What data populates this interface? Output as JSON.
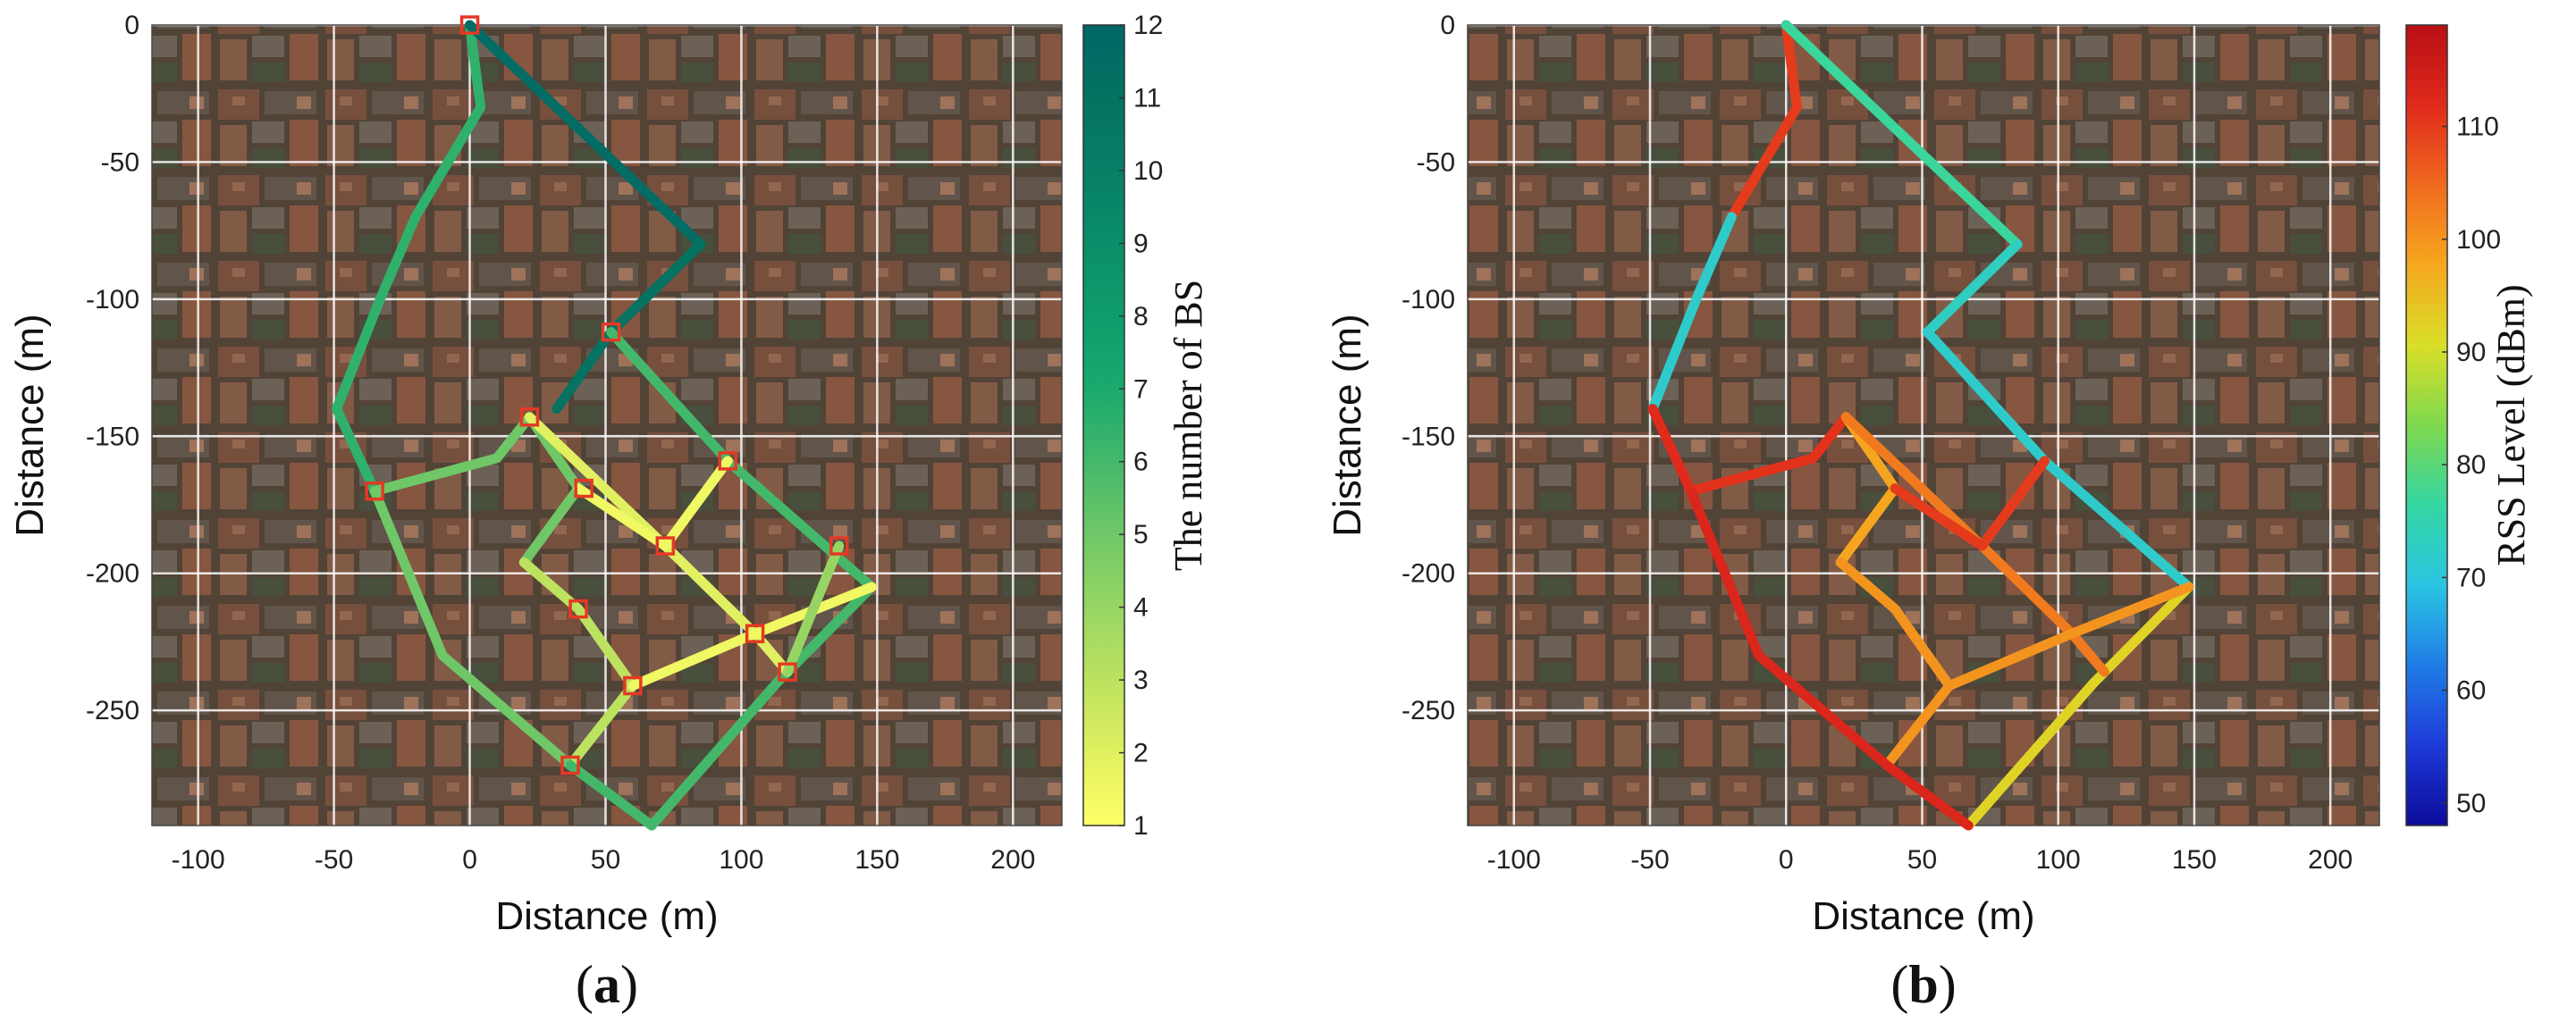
{
  "chart_data": [
    {
      "type": "line",
      "caption": "a",
      "xlabel": "Distance (m)",
      "ylabel": "Distance (m)",
      "xlim": [
        -117,
        218
      ],
      "ylim": [
        -292,
        0
      ],
      "xticks": [
        -100,
        -50,
        0,
        50,
        100,
        150,
        200
      ],
      "yticks": [
        0,
        -50,
        -100,
        -150,
        -200,
        -250
      ],
      "grid": true,
      "background": "aerial-photo",
      "colorbar": {
        "label": "The number of BS",
        "ticks": [
          1,
          2,
          3,
          4,
          5,
          6,
          7,
          8,
          9,
          10,
          11,
          12
        ],
        "range": [
          1,
          12
        ],
        "colormap": "summer-reversed",
        "stops": [
          "#FFFF66",
          "#E0F060",
          "#BCE25F",
          "#96D563",
          "#6FC767",
          "#44B86A",
          "#1AAA6E",
          "#0E9C6C",
          "#0A8E69",
          "#077F66",
          "#057262",
          "#006666"
        ]
      },
      "segments": [
        {
          "x": [
            0,
            4,
            -20,
            -33,
            -49,
            -35
          ],
          "y": [
            0,
            -30,
            -70,
            -100,
            -140,
            -170
          ],
          "value": 6.5
        },
        {
          "x": [
            0,
            85
          ],
          "y": [
            0,
            -80
          ],
          "value": 11.5
        },
        {
          "x": [
            85,
            52,
            32
          ],
          "y": [
            -80,
            -112,
            -140
          ],
          "value": 11
        },
        {
          "x": [
            52,
            95,
            148,
            113,
            67,
            37
          ],
          "y": [
            -112,
            -159,
            -205,
            -240,
            -292,
            -270
          ],
          "value": 6
        },
        {
          "x": [
            -35,
            10,
            22,
            40,
            20
          ],
          "y": [
            -170,
            -158,
            -143,
            -169,
            -196
          ],
          "value": 5
        },
        {
          "x": [
            22,
            72,
            105,
            117
          ],
          "y": [
            -143,
            -190,
            -222,
            -236
          ],
          "value": 2
        },
        {
          "x": [
            20,
            40,
            60,
            37
          ],
          "y": [
            -196,
            -213,
            -241,
            -270
          ],
          "value": 3
        },
        {
          "x": [
            40,
            72,
            95
          ],
          "y": [
            -169,
            -190,
            -159
          ],
          "value": 1.5
        },
        {
          "x": [
            60,
            105,
            148
          ],
          "y": [
            -241,
            -222,
            -205
          ],
          "value": 1.5
        },
        {
          "x": [
            136,
            117
          ],
          "y": [
            -190,
            -236
          ],
          "value": 4
        },
        {
          "x": [
            -35,
            -10,
            37
          ],
          "y": [
            -170,
            -230,
            -270
          ],
          "value": 5
        },
        {
          "x": [
            37,
            67
          ],
          "y": [
            -270,
            -292
          ],
          "value": 6
        }
      ],
      "markers": {
        "x": [
          0,
          52,
          22,
          -35,
          42,
          95,
          72,
          136,
          40,
          105,
          117,
          60,
          37
        ],
        "y": [
          0,
          -112,
          -143,
          -170,
          -169,
          -159,
          -190,
          -190,
          -213,
          -222,
          -236,
          -241,
          -270
        ],
        "symbol": "square",
        "color": "#E53925"
      }
    },
    {
      "type": "line",
      "caption": "b",
      "xlabel": "Distance (m)",
      "ylabel": "Distance (m)",
      "xlim": [
        -117,
        218
      ],
      "ylim": [
        -292,
        0
      ],
      "xticks": [
        -100,
        -50,
        0,
        50,
        100,
        150,
        200
      ],
      "yticks": [
        0,
        -50,
        -100,
        -150,
        -200,
        -250
      ],
      "grid": true,
      "background": "aerial-photo",
      "colorbar": {
        "label": "RSS Level (dBm)",
        "ticks": [
          50,
          60,
          70,
          80,
          90,
          100,
          110
        ],
        "range": [
          48,
          119
        ],
        "colormap": "jet-reversed",
        "stops": [
          "#0B0B9A",
          "#1E3AD8",
          "#1F7DE6",
          "#2BC4E2",
          "#34D6A2",
          "#7FD84E",
          "#D9DF28",
          "#F5A81F",
          "#F06A1E",
          "#E02A1C",
          "#B80E14"
        ]
      },
      "segments": [
        {
          "x": [
            0,
            4,
            -20
          ],
          "y": [
            0,
            -30,
            -70
          ],
          "value": 110
        },
        {
          "x": [
            -20,
            -33,
            -49
          ],
          "y": [
            -70,
            -100,
            -140
          ],
          "value": 72
        },
        {
          "x": [
            -49,
            -35
          ],
          "y": [
            -140,
            -170
          ],
          "value": 112
        },
        {
          "x": [
            0,
            85
          ],
          "y": [
            0,
            -80
          ],
          "value": 77
        },
        {
          "x": [
            85,
            52
          ],
          "y": [
            -80,
            -112
          ],
          "value": 73
        },
        {
          "x": [
            52,
            95,
            148
          ],
          "y": [
            -112,
            -159,
            -205
          ],
          "value": 72
        },
        {
          "x": [
            148,
            113,
            67
          ],
          "y": [
            -205,
            -240,
            -292
          ],
          "value": 92
        },
        {
          "x": [
            -35,
            10,
            22
          ],
          "y": [
            -170,
            -158,
            -143
          ],
          "value": 111
        },
        {
          "x": [
            22,
            40,
            20
          ],
          "y": [
            -143,
            -169,
            -196
          ],
          "value": 98
        },
        {
          "x": [
            22,
            72,
            105,
            117
          ],
          "y": [
            -143,
            -190,
            -222,
            -236
          ],
          "value": 103
        },
        {
          "x": [
            20,
            40,
            60,
            37
          ],
          "y": [
            -196,
            -213,
            -241,
            -270
          ],
          "value": 100
        },
        {
          "x": [
            40,
            72,
            95
          ],
          "y": [
            -169,
            -190,
            -159
          ],
          "value": 110
        },
        {
          "x": [
            60,
            105,
            148
          ],
          "y": [
            -241,
            -222,
            -205
          ],
          "value": 100
        },
        {
          "x": [
            -35,
            -10,
            37,
            67
          ],
          "y": [
            -170,
            -230,
            -270,
            -292
          ],
          "value": 113
        }
      ]
    }
  ]
}
